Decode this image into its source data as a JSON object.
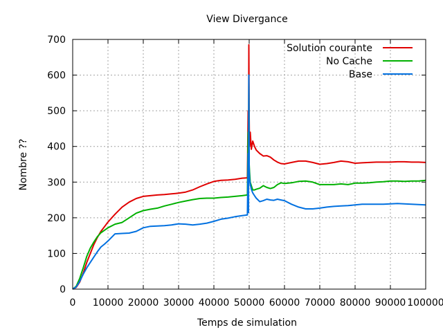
{
  "chart_data": {
    "type": "line",
    "title": "View Divergance",
    "xlabel": "Temps de simulation",
    "ylabel": "Nombre ??",
    "xlim": [
      0,
      100000
    ],
    "ylim": [
      0,
      700
    ],
    "grid": true,
    "legend_position": "top-right",
    "x_ticks": [
      0,
      10000,
      20000,
      30000,
      40000,
      50000,
      60000,
      70000,
      80000,
      90000,
      100000
    ],
    "y_ticks": [
      0,
      100,
      200,
      300,
      400,
      500,
      600,
      700
    ],
    "series": [
      {
        "name": "Solution courante",
        "color": "#e00000",
        "x": [
          0,
          1000,
          2000,
          3000,
          4000,
          5000,
          6000,
          7000,
          8000,
          9000,
          10000,
          12000,
          14000,
          16000,
          18000,
          20000,
          22000,
          24000,
          26000,
          28000,
          30000,
          32000,
          34000,
          36000,
          38000,
          40000,
          42000,
          44000,
          46000,
          48000,
          49500,
          49700,
          49800,
          49900,
          50000,
          50100,
          50300,
          50600,
          51000,
          51500,
          52000,
          53000,
          54000,
          55000,
          56000,
          57000,
          58000,
          59000,
          60000,
          62000,
          64000,
          66000,
          68000,
          70000,
          72000,
          74000,
          76000,
          78000,
          80000,
          82000,
          84000,
          86000,
          88000,
          90000,
          92000,
          94000,
          96000,
          98000,
          100000
        ],
        "y": [
          0,
          5,
          20,
          45,
          75,
          100,
          125,
          145,
          162,
          175,
          188,
          210,
          230,
          244,
          254,
          260,
          262,
          264,
          265,
          267,
          269,
          272,
          278,
          287,
          295,
          302,
          305,
          306,
          308,
          311,
          312,
          500,
          310,
          685,
          480,
          400,
          440,
          392,
          415,
          400,
          390,
          380,
          373,
          374,
          370,
          362,
          356,
          352,
          351,
          355,
          359,
          359,
          355,
          350,
          352,
          355,
          359,
          357,
          353,
          354,
          355,
          356,
          356,
          356,
          357,
          357,
          356,
          356,
          355
        ]
      },
      {
        "name": "No Cache",
        "color": "#00b000",
        "x": [
          0,
          1000,
          2000,
          3000,
          4000,
          5000,
          6000,
          7000,
          8000,
          9000,
          10000,
          12000,
          14000,
          16000,
          18000,
          20000,
          22000,
          24000,
          26000,
          28000,
          30000,
          32000,
          34000,
          36000,
          38000,
          40000,
          42000,
          44000,
          46000,
          48000,
          49500,
          49700,
          49800,
          49900,
          50000,
          50100,
          50300,
          50600,
          51000,
          51500,
          52000,
          53000,
          54000,
          55000,
          56000,
          57000,
          58000,
          59000,
          60000,
          62000,
          64000,
          66000,
          68000,
          70000,
          72000,
          74000,
          76000,
          78000,
          80000,
          82000,
          84000,
          86000,
          88000,
          90000,
          92000,
          94000,
          96000,
          98000,
          100000
        ],
        "y": [
          0,
          8,
          30,
          60,
          92,
          115,
          132,
          147,
          158,
          165,
          172,
          182,
          187,
          200,
          213,
          220,
          224,
          227,
          233,
          238,
          243,
          247,
          251,
          254,
          255,
          255,
          257,
          258,
          260,
          262,
          264,
          440,
          270,
          600,
          350,
          330,
          300,
          290,
          278,
          278,
          280,
          283,
          290,
          285,
          282,
          285,
          293,
          298,
          296,
          298,
          302,
          303,
          300,
          293,
          293,
          293,
          295,
          293,
          297,
          297,
          298,
          300,
          301,
          303,
          303,
          302,
          303,
          303,
          305
        ]
      },
      {
        "name": "Base",
        "color": "#0070e0",
        "x": [
          0,
          1000,
          2000,
          3000,
          4000,
          5000,
          6000,
          7000,
          8000,
          9000,
          10000,
          12000,
          14000,
          16000,
          18000,
          20000,
          22000,
          24000,
          26000,
          28000,
          30000,
          32000,
          34000,
          36000,
          38000,
          40000,
          42000,
          44000,
          46000,
          48000,
          49500,
          49700,
          49800,
          49900,
          50000,
          50100,
          50300,
          50600,
          51000,
          51500,
          52000,
          53000,
          54000,
          55000,
          56000,
          57000,
          58000,
          59000,
          60000,
          62000,
          64000,
          66000,
          68000,
          70000,
          72000,
          74000,
          76000,
          78000,
          80000,
          82000,
          84000,
          86000,
          88000,
          90000,
          92000,
          94000,
          96000,
          98000,
          100000
        ],
        "y": [
          0,
          6,
          22,
          42,
          60,
          75,
          90,
          105,
          118,
          126,
          135,
          155,
          156,
          157,
          162,
          172,
          176,
          177,
          178,
          180,
          183,
          182,
          180,
          182,
          185,
          190,
          196,
          199,
          203,
          206,
          208,
          380,
          215,
          600,
          340,
          310,
          295,
          280,
          270,
          262,
          255,
          245,
          248,
          252,
          250,
          249,
          252,
          250,
          248,
          238,
          230,
          225,
          225,
          227,
          230,
          232,
          233,
          234,
          236,
          238,
          238,
          238,
          238,
          239,
          240,
          239,
          238,
          237,
          236
        ]
      }
    ]
  }
}
